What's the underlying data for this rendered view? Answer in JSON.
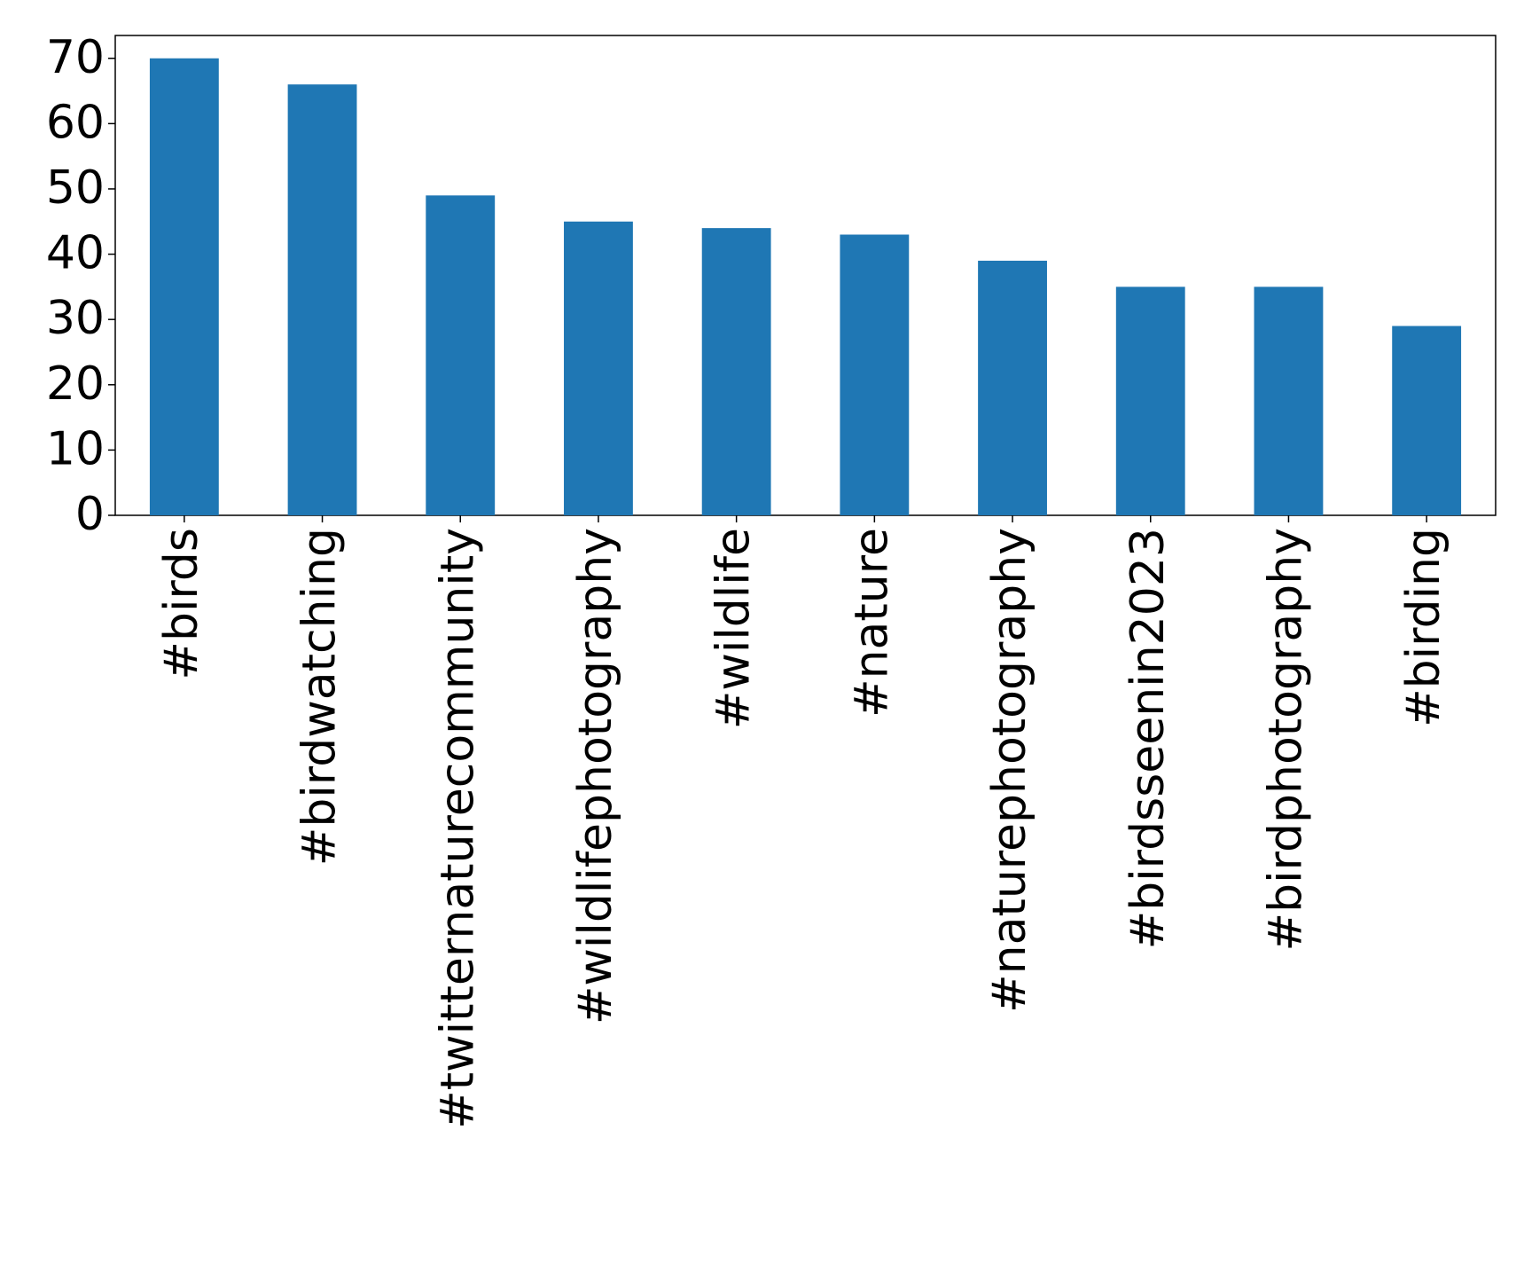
{
  "chart_data": {
    "type": "bar",
    "categories": [
      "#birds",
      "#birdwatching",
      "#twitternaturecommunity",
      "#wildlifephotography",
      "#wildlife",
      "#nature",
      "#naturephotography",
      "#birdsseenin2023",
      "#birdphotography",
      "#birding"
    ],
    "values": [
      70,
      66,
      49,
      45,
      44,
      43,
      39,
      35,
      35,
      29
    ],
    "color": "#1f77b4",
    "ylim": [
      0,
      73.5
    ],
    "yticks": [
      0,
      10,
      20,
      30,
      40,
      50,
      60,
      70
    ],
    "grid": false
  }
}
